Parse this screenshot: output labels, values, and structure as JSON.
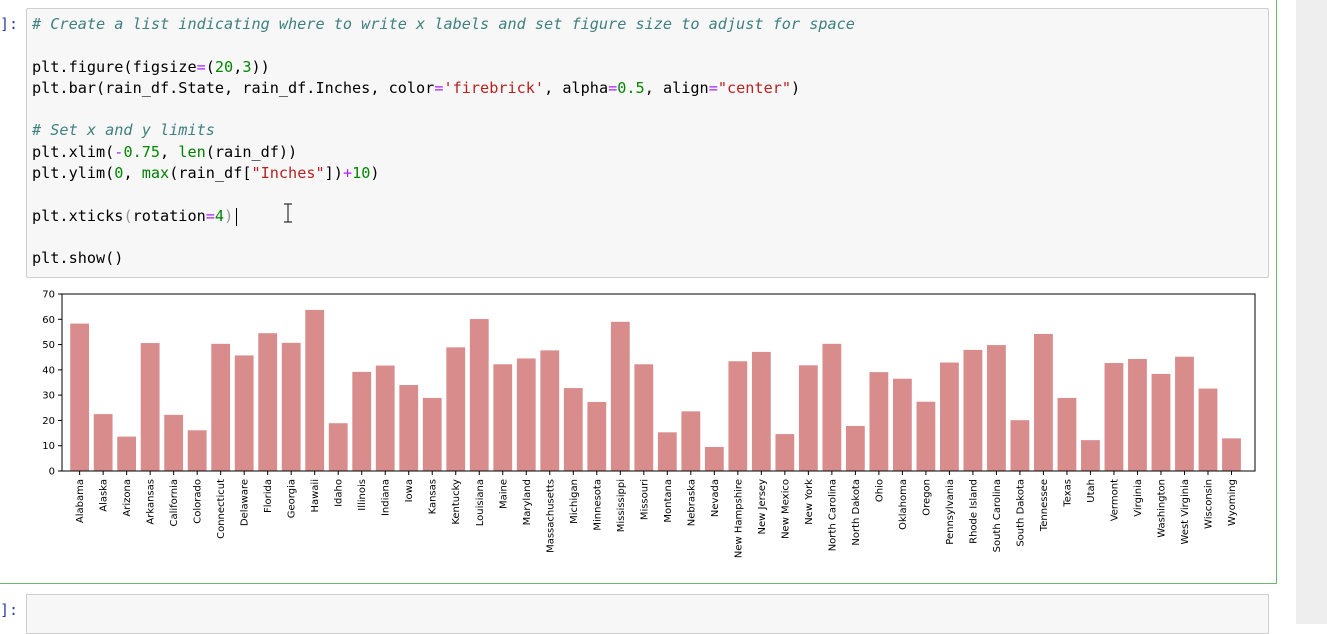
{
  "cell": {
    "prompt": "]:",
    "code_lines": [
      [
        {
          "t": "# Create a list indicating where to write x labels and set figure size to adjust for space",
          "c": "cm"
        }
      ],
      [],
      [
        {
          "t": "plt.figure(figsize",
          "c": ""
        },
        {
          "t": "=",
          "c": "op"
        },
        {
          "t": "(",
          "c": ""
        },
        {
          "t": "20",
          "c": "num"
        },
        {
          "t": ",",
          "c": ""
        },
        {
          "t": "3",
          "c": "num"
        },
        {
          "t": "))",
          "c": ""
        }
      ],
      [
        {
          "t": "plt.bar(rain_df.State, rain_df.Inches, color",
          "c": ""
        },
        {
          "t": "=",
          "c": "op"
        },
        {
          "t": "'firebrick'",
          "c": "str"
        },
        {
          "t": ", alpha",
          "c": ""
        },
        {
          "t": "=",
          "c": "op"
        },
        {
          "t": "0.5",
          "c": "num"
        },
        {
          "t": ", align",
          "c": ""
        },
        {
          "t": "=",
          "c": "op"
        },
        {
          "t": "\"center\"",
          "c": "str"
        },
        {
          "t": ")",
          "c": ""
        }
      ],
      [],
      [
        {
          "t": "# Set x and y limits",
          "c": "cm"
        }
      ],
      [
        {
          "t": "plt.xlim(",
          "c": ""
        },
        {
          "t": "-",
          "c": "op"
        },
        {
          "t": "0.75",
          "c": "num"
        },
        {
          "t": ", ",
          "c": ""
        },
        {
          "t": "len",
          "c": "bi"
        },
        {
          "t": "(rain_df))",
          "c": ""
        }
      ],
      [
        {
          "t": "plt.ylim(",
          "c": ""
        },
        {
          "t": "0",
          "c": "num"
        },
        {
          "t": ", ",
          "c": ""
        },
        {
          "t": "max",
          "c": "bi"
        },
        {
          "t": "(rain_df[",
          "c": ""
        },
        {
          "t": "\"Inches\"",
          "c": "str"
        },
        {
          "t": "])",
          "c": ""
        },
        {
          "t": "+",
          "c": "op"
        },
        {
          "t": "10",
          "c": "num"
        },
        {
          "t": ")",
          "c": ""
        }
      ],
      [],
      [
        {
          "t": "plt.xticks",
          "c": ""
        },
        {
          "t": "(",
          "c": "br"
        },
        {
          "t": "rotation",
          "c": ""
        },
        {
          "t": "=",
          "c": "op"
        },
        {
          "t": "4",
          "c": "num"
        },
        {
          "t": ")",
          "c": "br"
        }
      ],
      [],
      [
        {
          "t": "plt.show()",
          "c": ""
        }
      ]
    ]
  },
  "next_prompt": "]:",
  "chart_data": {
    "type": "bar",
    "color": "#d98c8c",
    "title": "",
    "xlabel": "",
    "ylabel": "",
    "ylim": [
      0,
      70
    ],
    "yticks": [
      "0",
      "10",
      "20",
      "30",
      "40",
      "50",
      "60",
      "70"
    ],
    "categories": [
      "Alabama",
      "Alaska",
      "Arizona",
      "Arkansas",
      "California",
      "Colorado",
      "Connecticut",
      "Delaware",
      "Florida",
      "Georgia",
      "Hawaii",
      "Idaho",
      "Illinois",
      "Indiana",
      "Iowa",
      "Kansas",
      "Kentucky",
      "Louisiana",
      "Maine",
      "Maryland",
      "Massachusetts",
      "Michigan",
      "Minnesota",
      "Mississippi",
      "Missouri",
      "Montana",
      "Nebraska",
      "Nevada",
      "New Hampshire",
      "New Jersey",
      "New Mexico",
      "New York",
      "North Carolina",
      "North Dakota",
      "Ohio",
      "Oklahoma",
      "Oregon",
      "Pennsylvania",
      "Rhode Island",
      "South Carolina",
      "South Dakota",
      "Tennessee",
      "Texas",
      "Utah",
      "Vermont",
      "Virginia",
      "Washington",
      "West Virginia",
      "Wisconsin",
      "Wyoming"
    ],
    "values": [
      58.3,
      22.5,
      13.6,
      50.6,
      22.2,
      16.1,
      50.3,
      45.7,
      54.5,
      50.7,
      63.7,
      18.9,
      39.2,
      41.7,
      34.0,
      28.9,
      48.9,
      60.1,
      42.2,
      44.5,
      47.7,
      32.8,
      27.3,
      59.0,
      42.2,
      15.3,
      23.6,
      9.5,
      43.4,
      47.1,
      14.6,
      41.8,
      50.3,
      17.8,
      39.1,
      36.5,
      27.4,
      42.9,
      47.9,
      49.8,
      20.1,
      54.2,
      28.9,
      12.2,
      42.7,
      44.3,
      38.4,
      45.2,
      32.6,
      12.9
    ]
  }
}
